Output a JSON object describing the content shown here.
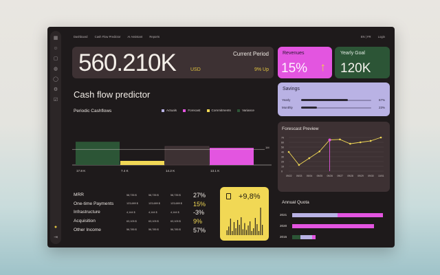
{
  "nav": {
    "items": [
      "Dashboard",
      "Cash Flow Predictor",
      "AI Assistant",
      "Reports"
    ],
    "lang": "EN | FR",
    "login": "Login"
  },
  "sidebar": {
    "icons": [
      "grid-icon",
      "users-icon",
      "box-icon",
      "globe-icon",
      "chat-icon",
      "settings-icon",
      "check-icon"
    ],
    "bottom_icons": [
      "avatar-icon",
      "logout-icon"
    ]
  },
  "hero": {
    "value": "560.210K",
    "currency": "USD",
    "label": "Current Period",
    "change": "9% Up"
  },
  "revenues": {
    "label": "Revenues",
    "value": "15%",
    "trend": "up",
    "color": "#e355e0"
  },
  "yearly_goal": {
    "label": "Yearly Goal",
    "value": "120K",
    "color": "#2c5536"
  },
  "savings": {
    "label": "Savings",
    "rows": [
      {
        "label": "Yearly",
        "value": "67%",
        "fraction": 0.67
      },
      {
        "label": "Monthly",
        "value": "23%",
        "fraction": 0.23
      }
    ]
  },
  "page_title": "Cash flow predictor",
  "periodic": {
    "title": "Periodic Cashflows",
    "legend": [
      {
        "name": "Actuals",
        "color": "#b9b2e4"
      },
      {
        "name": "Forecast",
        "color": "#e355e0"
      },
      {
        "name": "Commitments",
        "color": "#f1d855"
      },
      {
        "name": "Variance",
        "color": "#2c5536"
      }
    ]
  },
  "metrics": [
    {
      "name": "MRR",
      "a": "58,735 $",
      "b": "58,735 $",
      "c": "58,735 $",
      "pct": "27%",
      "color": "#f1ece6"
    },
    {
      "name": "One-time Payments",
      "a": "123,689 $",
      "b": "123,689 $",
      "c": "123,689 $",
      "pct": "15%",
      "color": "#f1d855"
    },
    {
      "name": "Infrastructure",
      "a": "4,144 $",
      "b": "4,144 $",
      "c": "4,144 $",
      "pct": "-3%",
      "color": "#f1ece6"
    },
    {
      "name": "Acquisition",
      "a": "63,105 $",
      "b": "63,105 $",
      "c": "63,105 $",
      "pct": "9%",
      "color": "#f1d855"
    },
    {
      "name": "Other Income",
      "a": "56,785 $",
      "b": "56,785 $",
      "c": "56,785 $",
      "pct": "57%",
      "color": "#f1ece6"
    }
  ],
  "growth": {
    "value": "+9,8%"
  },
  "forecast": {
    "title": "Forescast Preview"
  },
  "annual_quota": {
    "title": "Annual Quota",
    "rows": [
      {
        "year": "2021",
        "segments": [
          {
            "fraction": 0.5,
            "color": "#b9b2e4"
          },
          {
            "fraction": 0.5,
            "color": "#e355e0"
          }
        ]
      },
      {
        "year": "2020",
        "segments": [
          {
            "fraction": 0.9,
            "color": "#e355e0"
          }
        ]
      },
      {
        "year": "2015",
        "segments": [
          {
            "fraction": 0.09,
            "color": "#2c5536"
          },
          {
            "fraction": 0.13,
            "color": "#b9b2e4"
          },
          {
            "fraction": 0.04,
            "color": "#e355e0"
          }
        ]
      }
    ]
  },
  "chart_data": [
    {
      "type": "bar",
      "title": "Periodic Cashflows",
      "categories": [
        "Actuals",
        "Commitments",
        "Variance",
        "Forecast"
      ],
      "values": [
        17.8,
        7.4,
        14.2,
        13.1
      ],
      "value_labels": [
        "17.8 K",
        "7.4 K",
        "14.2 K",
        "13.1 K"
      ],
      "colors": [
        "#2c5536",
        "#f1d855",
        "#3d3133",
        "#e355e0"
      ],
      "reference_line": {
        "label": "1M",
        "value": 12
      },
      "ylim": [
        0,
        20
      ]
    },
    {
      "type": "line",
      "title": "Forescast Preview",
      "x": [
        "09/22",
        "09/23",
        "09/24",
        "09/25",
        "09/26",
        "09/27",
        "09/28",
        "09/29",
        "09/30",
        "10/01"
      ],
      "series": [
        {
          "values": [
            40,
            13,
            27,
            41,
            65,
            66,
            57,
            60,
            63,
            70
          ],
          "color": "#f1d855"
        }
      ],
      "highlight": {
        "index": 4,
        "color": "#e355e0"
      },
      "yticks": [
        0,
        10,
        20,
        30,
        40,
        50,
        60,
        70
      ],
      "ylim": [
        0,
        70
      ],
      "grid": true
    },
    {
      "type": "bar",
      "title": "Growth",
      "values": [
        14,
        25,
        48,
        12,
        38,
        20,
        44,
        30,
        52,
        17,
        35,
        15,
        28,
        40,
        12,
        20,
        50,
        32,
        12,
        80,
        30
      ],
      "color": "#2b2520",
      "ylim": [
        0,
        80
      ]
    }
  ]
}
